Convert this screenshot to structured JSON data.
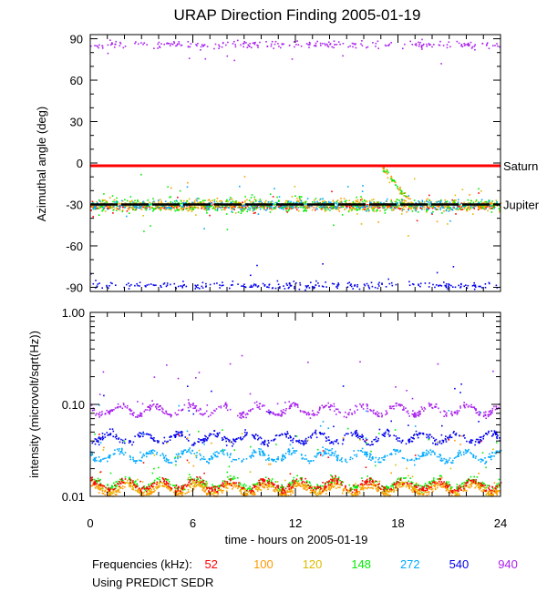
{
  "title": "URAP Direction Finding  2005-01-19",
  "xlabel": "time - hours on 2005-01-19",
  "legend_label": "Frequencies (kHz):",
  "note": "Using PREDICT SEDR",
  "chart_data": [
    {
      "type": "scatter",
      "name": "azimuth",
      "ylabel": "Azimuthal angle (deg)",
      "xlim": [
        0,
        24
      ],
      "ylim": [
        -93,
        93
      ],
      "yticks": [
        90,
        60,
        30,
        0,
        -30,
        -60,
        -90
      ],
      "reference_lines": [
        {
          "name": "Saturn",
          "y": -2,
          "color": "#ff0000"
        },
        {
          "name": "Jupiter",
          "y": -30,
          "color": "#000000"
        }
      ],
      "series": [
        {
          "name": "52",
          "color": "#ff0000",
          "center": -31,
          "spread": 3
        },
        {
          "name": "100",
          "color": "#ff9900",
          "center": -30,
          "spread": 6
        },
        {
          "name": "120",
          "color": "#ddbb00",
          "center": -30,
          "spread": 6
        },
        {
          "name": "148",
          "color": "#00ee00",
          "center": -30,
          "spread": 8
        },
        {
          "name": "272",
          "color": "#00aaff",
          "center": -30,
          "spread": 5
        },
        {
          "name": "540",
          "color": "#0000ee",
          "center": -88,
          "spread": 4
        },
        {
          "name": "940",
          "color": "#aa22ee",
          "center": 86,
          "spread": 4
        }
      ]
    },
    {
      "type": "scatter",
      "name": "intensity",
      "ylabel": "intensity (microvolt/sqrt(Hz))",
      "yscale": "log",
      "ylim": [
        0.01,
        1.0
      ],
      "ytick_labels": [
        "1.00",
        "0.10",
        "0.01"
      ],
      "xticks": [
        0,
        6,
        12,
        18,
        24
      ],
      "series": [
        {
          "name": "940",
          "color": "#aa22ee",
          "level": 0.088
        },
        {
          "name": "540",
          "color": "#0000ee",
          "level": 0.044
        },
        {
          "name": "272",
          "color": "#00aaff",
          "level": 0.028
        },
        {
          "name": "148",
          "color": "#00ee00",
          "level": 0.014
        },
        {
          "name": "120",
          "color": "#ddbb00",
          "level": 0.0125
        },
        {
          "name": "100",
          "color": "#ff9900",
          "level": 0.012
        },
        {
          "name": "52",
          "color": "#ff0000",
          "level": 0.0135
        }
      ]
    }
  ],
  "frequencies": [
    {
      "label": "52",
      "color": "#ff0000"
    },
    {
      "label": "100",
      "color": "#ff9900"
    },
    {
      "label": "120",
      "color": "#ddbb00"
    },
    {
      "label": "148",
      "color": "#00ee00"
    },
    {
      "label": "272",
      "color": "#00aaff"
    },
    {
      "label": "540",
      "color": "#0000ee"
    },
    {
      "label": "940",
      "color": "#aa22ee"
    }
  ]
}
